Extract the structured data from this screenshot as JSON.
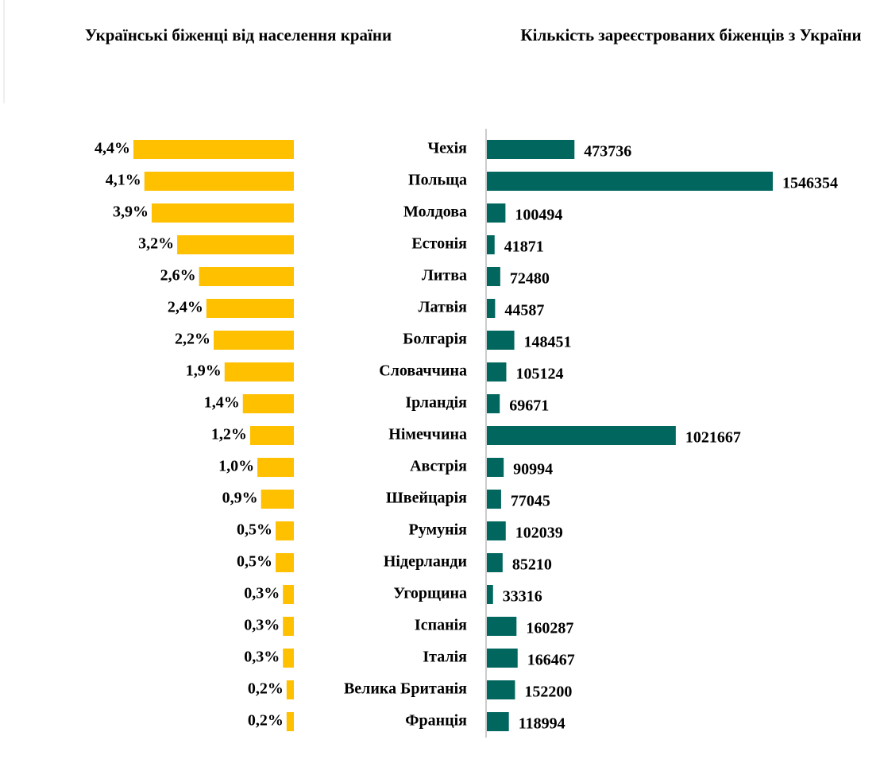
{
  "chart_data": [
    {
      "type": "hbar-left",
      "title": "Українські біженці від населення країни",
      "values": [
        4.4,
        4.1,
        3.9,
        3.2,
        2.6,
        2.4,
        2.2,
        1.9,
        1.4,
        1.2,
        1.0,
        0.9,
        0.5,
        0.5,
        0.3,
        0.3,
        0.3,
        0.2,
        0.2
      ],
      "value_labels": [
        "4,4%",
        "4,1%",
        "3,9%",
        "3,2%",
        "2,6%",
        "2,4%",
        "2,2%",
        "1,9%",
        "1,4%",
        "1,2%",
        "1,0%",
        "0,9%",
        "0,5%",
        "0,5%",
        "0,3%",
        "0,3%",
        "0,3%",
        "0,2%",
        "0,2%"
      ],
      "color": "#FFC000",
      "xlim": [
        0,
        4.4
      ]
    },
    {
      "type": "hbar",
      "title": "Кількість зареєстрованих біженців з України",
      "categories": [
        "Чехія",
        "Польща",
        "Молдова",
        "Естонія",
        "Литва",
        "Латвія",
        "Болгарія",
        "Словаччина",
        "Ірландія",
        "Німеччина",
        "Австрія",
        "Швейцарія",
        "Румунія",
        "Нідерланди",
        "Угорщина",
        "Іспанія",
        "Італія",
        "Велика Британія",
        "Франція"
      ],
      "values": [
        473736,
        1546354,
        100494,
        41871,
        72480,
        44587,
        148451,
        105124,
        69671,
        1021667,
        90994,
        77045,
        102039,
        85210,
        33316,
        160287,
        166467,
        152200,
        118994
      ],
      "color": "#00665E",
      "xlim": [
        0,
        1546354
      ]
    }
  ]
}
